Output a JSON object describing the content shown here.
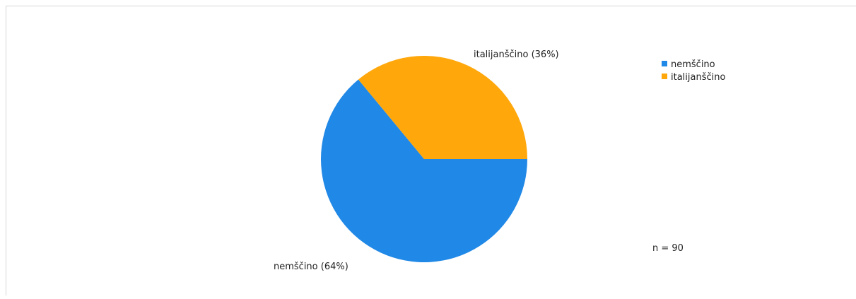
{
  "chart_data": {
    "type": "pie",
    "title": "",
    "slices": [
      {
        "label": "nemščino",
        "value": 64,
        "color": "#2088e6",
        "data_label": "nemščino (64%)"
      },
      {
        "label": "italijanščino",
        "value": 36,
        "color": "#ffa70b",
        "data_label": "italijanščino (36%)"
      }
    ],
    "legend": {
      "placement": "top-right",
      "items": [
        {
          "label": "nemščino",
          "color": "#2088e6"
        },
        {
          "label": "italijanščino",
          "color": "#ffa70b"
        }
      ]
    },
    "annotation": "n = 90"
  }
}
